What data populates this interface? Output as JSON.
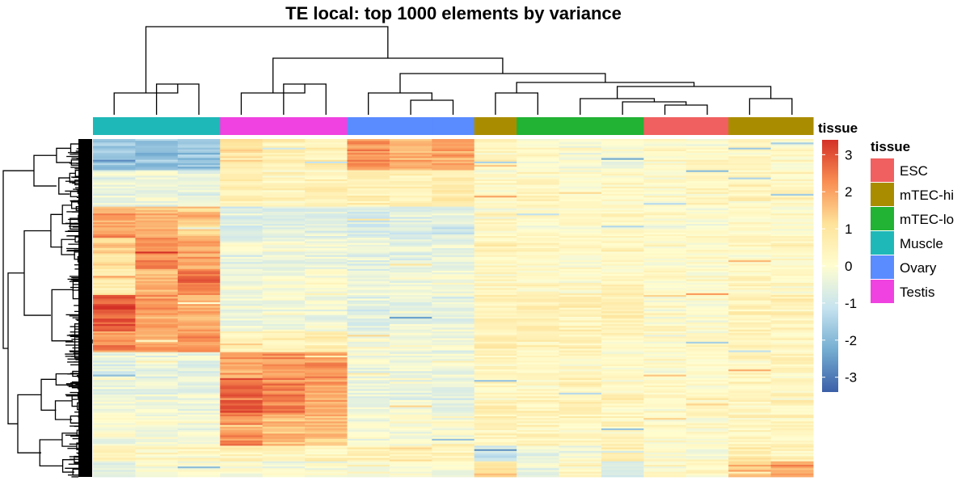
{
  "chart_data": {
    "type": "heatmap",
    "title": "TE local: top 1000 elements by variance",
    "annotation_label": "tissue",
    "legend_title": "tissue",
    "colorscale": {
      "ticks": [
        3,
        2,
        1,
        0,
        -1,
        -2,
        -3
      ],
      "range": [
        -3.4,
        3.4
      ],
      "colors": [
        "#3b5fa8",
        "#74add1",
        "#c6e3ef",
        "#fffdd0",
        "#fee39a",
        "#f98e52",
        "#d43027"
      ]
    },
    "tissues": [
      {
        "name": "ESC",
        "color": "#f06060"
      },
      {
        "name": "mTEC-hi",
        "color": "#aa8c00"
      },
      {
        "name": "mTEC-lo",
        "color": "#22b234"
      },
      {
        "name": "Muscle",
        "color": "#1fb8b8"
      },
      {
        "name": "Ovary",
        "color": "#5a8bff"
      },
      {
        "name": "Testis",
        "color": "#ef42e0"
      }
    ],
    "columns": [
      {
        "tissue": "Muscle"
      },
      {
        "tissue": "Muscle"
      },
      {
        "tissue": "Muscle"
      },
      {
        "tissue": "Testis"
      },
      {
        "tissue": "Testis"
      },
      {
        "tissue": "Testis"
      },
      {
        "tissue": "Ovary"
      },
      {
        "tissue": "Ovary"
      },
      {
        "tissue": "Ovary"
      },
      {
        "tissue": "mTEC-hi"
      },
      {
        "tissue": "mTEC-lo"
      },
      {
        "tissue": "mTEC-lo"
      },
      {
        "tissue": "mTEC-lo"
      },
      {
        "tissue": "ESC"
      },
      {
        "tissue": "ESC"
      },
      {
        "tissue": "mTEC-hi"
      },
      {
        "tissue": "mTEC-hi"
      }
    ],
    "row_blocks": [
      {
        "size": 6,
        "values": [
          -1.6,
          -1.8,
          -1.7,
          0.8,
          0.5,
          0.6,
          2.2,
          1.8,
          1.9,
          0.3,
          0.1,
          0.0,
          -0.2,
          0.1,
          0.1,
          0.2,
          0.1
        ]
      },
      {
        "size": 7,
        "values": [
          -0.4,
          -0.3,
          -0.5,
          0.6,
          0.4,
          0.5,
          0.6,
          0.5,
          0.7,
          0.2,
          0.3,
          0.1,
          0.2,
          0.2,
          0.3,
          0.4,
          0.3
        ]
      },
      {
        "size": 6,
        "values": [
          2.0,
          1.8,
          1.6,
          -0.6,
          -0.5,
          -0.6,
          -0.7,
          -0.6,
          -0.7,
          0.2,
          0.2,
          0.2,
          0.2,
          0.1,
          0.1,
          0.2,
          0.2
        ]
      },
      {
        "size": 6,
        "values": [
          1.2,
          2.3,
          2.0,
          -0.4,
          -0.3,
          -0.4,
          -0.4,
          -0.5,
          -0.4,
          0.4,
          0.3,
          0.2,
          0.3,
          0.1,
          0.1,
          0.3,
          0.2
        ]
      },
      {
        "size": 5,
        "values": [
          0.7,
          1.6,
          2.6,
          -0.2,
          -0.2,
          -0.1,
          -0.4,
          -0.3,
          -0.2,
          0.3,
          0.2,
          0.2,
          0.3,
          0.1,
          0.1,
          0.3,
          0.2
        ]
      },
      {
        "size": 7,
        "values": [
          2.9,
          2.0,
          1.8,
          -0.3,
          -0.2,
          -0.2,
          -0.5,
          -0.4,
          -0.4,
          0.5,
          0.6,
          0.5,
          0.6,
          0.1,
          0.1,
          0.4,
          0.5
        ]
      },
      {
        "size": 4,
        "values": [
          2.3,
          1.9,
          2.3,
          0.5,
          0.6,
          0.6,
          -0.2,
          -0.2,
          -0.3,
          0.6,
          0.5,
          0.5,
          0.4,
          0.1,
          0.1,
          0.4,
          0.3
        ]
      },
      {
        "size": 5,
        "values": [
          -0.5,
          -0.4,
          -0.5,
          2.0,
          2.1,
          2.2,
          -0.3,
          -0.4,
          -0.3,
          0.3,
          0.3,
          0.2,
          0.2,
          0.1,
          0.1,
          0.3,
          0.3
        ]
      },
      {
        "size": 7,
        "values": [
          -0.3,
          -0.3,
          -0.4,
          2.6,
          2.4,
          1.9,
          -0.4,
          -0.3,
          -0.4,
          0.4,
          0.3,
          0.5,
          0.3,
          0.1,
          0.1,
          0.3,
          0.4
        ]
      },
      {
        "size": 6,
        "values": [
          -0.2,
          -0.2,
          -0.2,
          2.2,
          1.7,
          1.5,
          -0.2,
          -0.2,
          -0.2,
          0.4,
          0.3,
          0.3,
          0.3,
          0.1,
          0.1,
          0.3,
          0.3
        ]
      },
      {
        "size": 3,
        "values": [
          0.6,
          0.4,
          0.3,
          0.5,
          0.4,
          0.4,
          0.6,
          0.7,
          0.5,
          -0.8,
          -0.3,
          -0.1,
          0.8,
          0.1,
          0.1,
          0.7,
          0.5
        ]
      },
      {
        "size": 3,
        "values": [
          -0.5,
          -0.2,
          0.1,
          0.1,
          0.0,
          0.0,
          0.1,
          0.0,
          -0.1,
          1.3,
          -0.4,
          0.3,
          -0.5,
          0.2,
          0.2,
          1.8,
          2.0
        ]
      }
    ]
  }
}
